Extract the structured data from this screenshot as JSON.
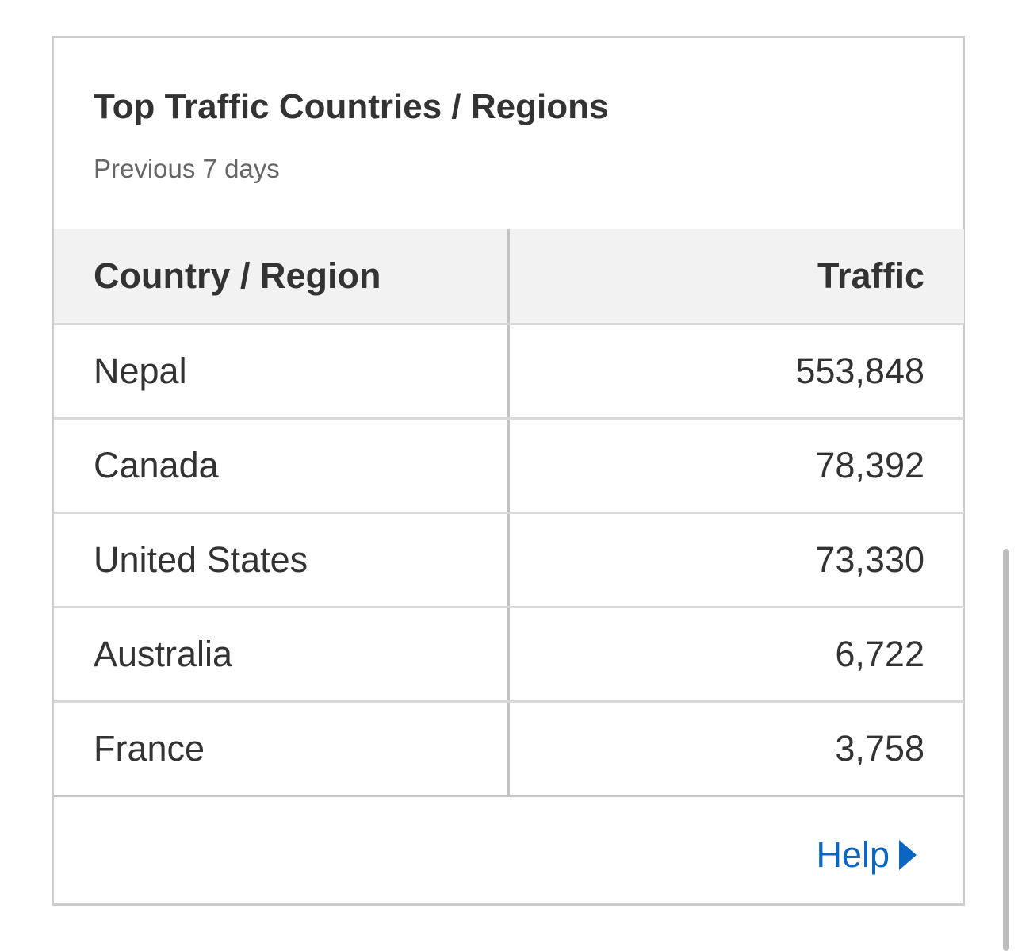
{
  "card": {
    "title": "Top Traffic Countries / Regions",
    "subtitle": "Previous 7 days"
  },
  "table": {
    "headers": {
      "country": "Country / Region",
      "traffic": "Traffic"
    },
    "rows": [
      {
        "country": "Nepal",
        "traffic": "553,848"
      },
      {
        "country": "Canada",
        "traffic": "78,392"
      },
      {
        "country": "United States",
        "traffic": "73,330"
      },
      {
        "country": "Australia",
        "traffic": "6,722"
      },
      {
        "country": "France",
        "traffic": "3,758"
      }
    ]
  },
  "footer": {
    "help_label": "Help",
    "help_icon": "play-arrow-icon"
  },
  "colors": {
    "link": "#0a66c2",
    "header_bg": "#f2f2f2",
    "border": "#cccccc"
  }
}
